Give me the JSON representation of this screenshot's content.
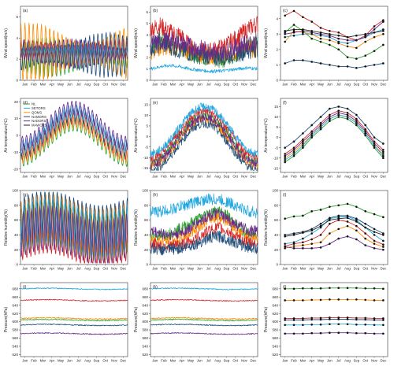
{
  "months": [
    "Jan",
    "Feb",
    "Mar",
    "Apr",
    "May",
    "Jun",
    "Jul",
    "Aug",
    "Sep",
    "Oct",
    "Nov",
    "Dec"
  ],
  "colors": {
    "green": "#2ca02c",
    "orange": "#ff8c00",
    "red": "#d62728",
    "blue": "#1f4e79",
    "cyan": "#1fa6e0",
    "purple": "#6a2a8a",
    "black": "#222222"
  },
  "legend_labels": [
    "NL",
    "SETORS",
    "QOMS",
    "NAMORS",
    "NADORS",
    "MAWORS"
  ],
  "chart_data": [
    {
      "panel": "(a)",
      "type": "line",
      "ylabel": "Wind speed(m/s)",
      "ylim": [
        0,
        7
      ],
      "yticks": [
        0,
        2,
        4,
        6
      ],
      "style": "diurnal",
      "amp": [
        1.6,
        2.4,
        0.8,
        1.8,
        0.6,
        1.2
      ],
      "base": [
        2.2,
        2.6,
        3.0,
        2.4,
        2.8,
        2.5
      ]
    },
    {
      "panel": "(b)",
      "type": "line",
      "ylabel": "Wind speed(m/s)",
      "ylim": [
        0,
        6.5
      ],
      "yticks": [
        0,
        1,
        2,
        3,
        4,
        5,
        6
      ],
      "style": "noisy",
      "level": [
        [
          3.0,
          3.5,
          3.5,
          3.0,
          2.5,
          2.2,
          2.0,
          1.8,
          2.0,
          2.5,
          3.0,
          3.2
        ],
        [
          2.5,
          3.0,
          3.0,
          2.8,
          2.5,
          2.3,
          2.2,
          2.0,
          2.2,
          2.5,
          2.8,
          2.6
        ],
        [
          4.5,
          4.8,
          4.2,
          4.0,
          3.0,
          2.5,
          2.5,
          2.8,
          3.2,
          3.8,
          4.5,
          5.0
        ],
        [
          2.8,
          3.2,
          3.0,
          2.6,
          2.4,
          2.2,
          2.1,
          2.0,
          2.2,
          2.4,
          2.6,
          2.8
        ],
        [
          1.0,
          1.2,
          1.3,
          1.2,
          1.0,
          0.9,
          0.8,
          0.8,
          0.9,
          1.0,
          1.1,
          1.0
        ],
        [
          3.2,
          3.4,
          3.5,
          3.3,
          3.0,
          2.8,
          2.6,
          2.4,
          2.6,
          3.0,
          3.2,
          3.4
        ]
      ]
    },
    {
      "panel": "(c)",
      "type": "line",
      "ylabel": "Wind speed(m/s)",
      "ylim": [
        0,
        4.8
      ],
      "yticks": [
        0,
        1.0,
        2.0,
        3.0,
        4.0
      ],
      "style": "markers",
      "series": [
        [
          3.1,
          3.6,
          3.2,
          2.7,
          2.5,
          2.3,
          2.0,
          1.5,
          1.4,
          1.6,
          1.9,
          2.3
        ],
        [
          2.8,
          2.9,
          3.0,
          3.0,
          2.9,
          2.8,
          2.5,
          2.4,
          2.6,
          2.8,
          3.1,
          3.3
        ],
        [
          4.2,
          4.5,
          4.1,
          3.8,
          3.4,
          3.2,
          3.1,
          2.8,
          2.6,
          2.9,
          3.5,
          3.9
        ],
        [
          1.1,
          1.3,
          1.3,
          1.2,
          1.1,
          1.0,
          0.9,
          0.9,
          0.8,
          0.9,
          1.0,
          1.1
        ],
        [
          3.2,
          3.3,
          3.3,
          3.2,
          3.1,
          3.0,
          2.9,
          2.8,
          2.9,
          3.0,
          3.1,
          3.2
        ],
        [
          2.5,
          3.2,
          3.1,
          3.0,
          2.7,
          2.6,
          2.4,
          2.2,
          2.1,
          2.5,
          2.8,
          3.0
        ],
        [
          3.0,
          3.1,
          3.2,
          3.1,
          3.0,
          2.9,
          2.7,
          2.6,
          2.6,
          2.8,
          3.3,
          3.8
        ]
      ]
    },
    {
      "panel": "(d)",
      "type": "line",
      "ylabel": "Air temperature(℃)",
      "ylim": [
        -22,
        22
      ],
      "yticks": [
        -20,
        -10,
        0,
        10,
        20
      ],
      "style": "diurnal_temp",
      "legend": true
    },
    {
      "panel": "(e)",
      "type": "line",
      "ylabel": "Air temperature(℃)",
      "ylim": [
        -17,
        18
      ],
      "yticks": [
        -15,
        -10,
        -5,
        0,
        5,
        10,
        15
      ],
      "style": "noisy_temp"
    },
    {
      "panel": "(f)",
      "type": "line",
      "ylabel": "Air temperature(℃)",
      "ylim": [
        -17,
        19
      ],
      "yticks": [
        -15,
        -10,
        -5,
        0,
        5,
        10,
        15
      ],
      "style": "markers",
      "series": [
        [
          -12,
          -9,
          -5,
          0,
          4,
          8,
          10,
          9,
          6,
          1,
          -5,
          -10
        ],
        [
          -10,
          -7,
          -3,
          1,
          5,
          9,
          11,
          10,
          7,
          2,
          -4,
          -8
        ],
        [
          -8,
          -5,
          -1,
          3,
          7,
          11,
          13,
          12,
          9,
          4,
          -2,
          -6
        ],
        [
          -5,
          -2,
          2,
          6,
          10,
          14,
          15,
          14,
          11,
          6,
          0,
          -3
        ],
        [
          -11,
          -8,
          -4,
          1,
          5,
          9,
          11,
          10,
          7,
          2,
          -4,
          -9
        ],
        [
          -9,
          -6,
          -2,
          2,
          6,
          10,
          12,
          11,
          8,
          3,
          -3,
          -7
        ]
      ]
    },
    {
      "panel": "(g)",
      "type": "line",
      "ylabel": "Relative humidity(%)",
      "ylim": [
        0,
        100
      ],
      "yticks": [
        0,
        20,
        40,
        60,
        80,
        100
      ],
      "style": "diurnal_rh"
    },
    {
      "panel": "(h)",
      "type": "line",
      "ylabel": "Relative humidity(%)",
      "ylim": [
        0,
        100
      ],
      "yticks": [
        0,
        20,
        40,
        60,
        80,
        100
      ],
      "style": "noisy_rh"
    },
    {
      "panel": "(i)",
      "type": "line",
      "ylabel": "Relative humidity(%)",
      "ylim": [
        0,
        100
      ],
      "yticks": [
        0,
        20,
        40,
        60,
        80,
        100
      ],
      "style": "markers",
      "series": [
        [
          62,
          65,
          66,
          72,
          74,
          78,
          80,
          82,
          78,
          72,
          68,
          64
        ],
        [
          28,
          30,
          35,
          42,
          50,
          62,
          64,
          65,
          60,
          50,
          40,
          32
        ],
        [
          25,
          28,
          30,
          34,
          40,
          55,
          60,
          58,
          52,
          42,
          32,
          27
        ],
        [
          40,
          42,
          44,
          48,
          55,
          63,
          66,
          66,
          62,
          55,
          48,
          42
        ],
        [
          38,
          40,
          43,
          46,
          52,
          60,
          62,
          63,
          58,
          50,
          44,
          40
        ],
        [
          22,
          25,
          26,
          28,
          30,
          42,
          48,
          52,
          46,
          35,
          28,
          24
        ],
        [
          24,
          22,
          22,
          22,
          23,
          28,
          35,
          38,
          34,
          26,
          22,
          20
        ]
      ]
    },
    {
      "panel": "(j)",
      "type": "line",
      "ylabel": "Pressure(hPa)",
      "ylim": [
        515,
        695
      ],
      "yticks": [
        520,
        540,
        560,
        580,
        600,
        620,
        640,
        660,
        680
      ],
      "style": "flat",
      "levels": [
        680,
        652,
        608,
        604,
        592,
        571
      ]
    },
    {
      "panel": "(k)",
      "type": "line",
      "ylabel": "Pressure(hPa)",
      "ylim": [
        515,
        695
      ],
      "yticks": [
        520,
        540,
        560,
        580,
        600,
        620,
        640,
        660,
        680
      ],
      "style": "flat",
      "levels": [
        680,
        652,
        608,
        604,
        592,
        571
      ]
    },
    {
      "panel": "(l)",
      "type": "line",
      "ylabel": "Pressure(hPa)",
      "ylim": [
        515,
        695
      ],
      "yticks": [
        520,
        540,
        560,
        580,
        600,
        620,
        640,
        660,
        680
      ],
      "style": "markers",
      "series": [
        [
          680,
          680,
          681,
          681,
          681,
          682,
          682,
          682,
          682,
          681,
          681,
          680
        ],
        [
          652,
          652,
          652,
          653,
          653,
          654,
          654,
          654,
          654,
          653,
          652,
          652
        ],
        [
          608,
          608,
          608,
          609,
          609,
          610,
          610,
          610,
          609,
          609,
          608,
          608
        ],
        [
          604,
          604,
          604,
          605,
          605,
          606,
          606,
          606,
          605,
          605,
          604,
          604
        ],
        [
          592,
          592,
          592,
          593,
          593,
          594,
          594,
          594,
          593,
          593,
          592,
          592
        ],
        [
          571,
          571,
          571,
          572,
          572,
          573,
          573,
          573,
          572,
          572,
          571,
          571
        ]
      ]
    }
  ]
}
